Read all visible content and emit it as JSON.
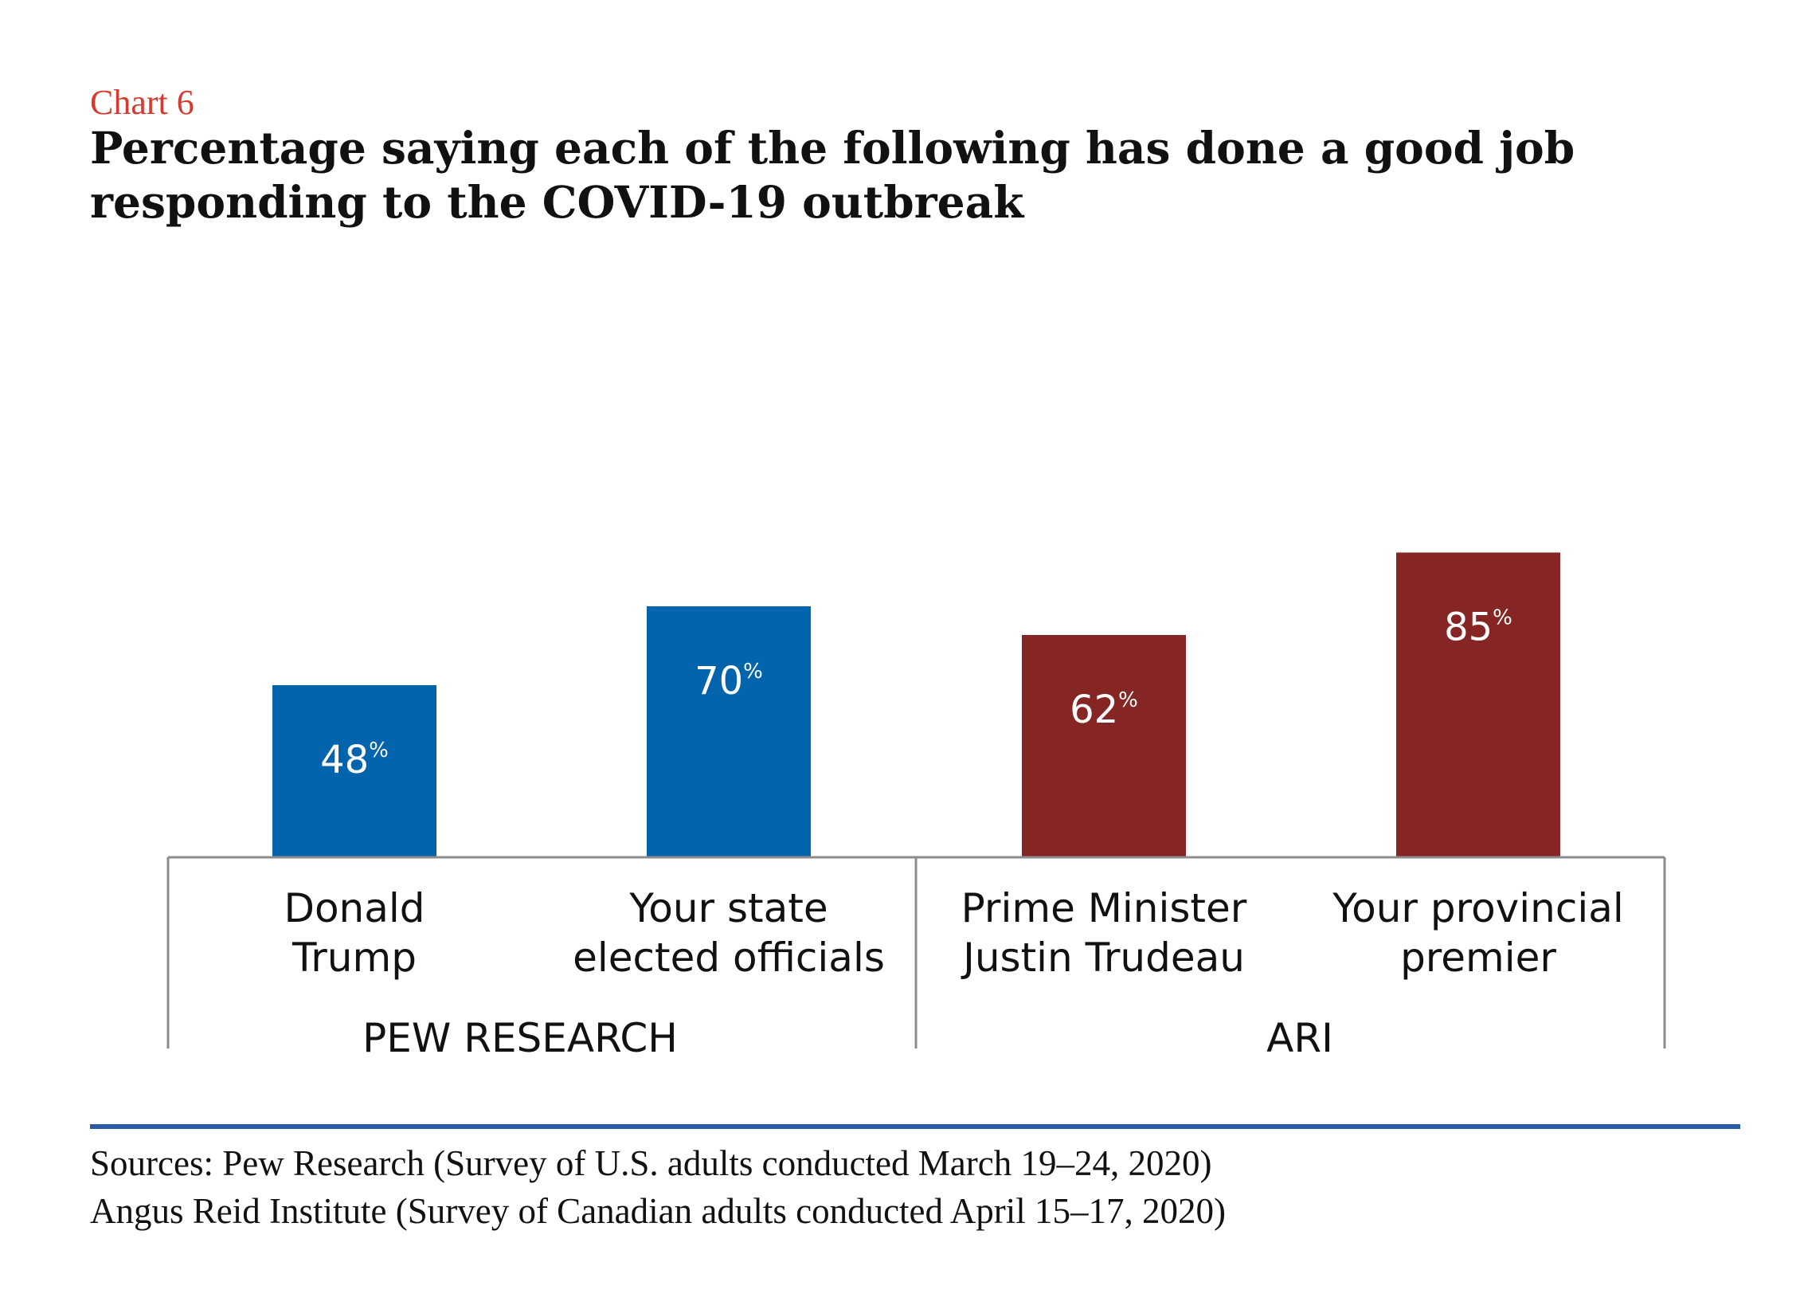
{
  "header": {
    "chart_label": "Chart 6",
    "title": "Percentage saying each of the following has done a good job\nresponding to the COVID-19 outbreak"
  },
  "sources": [
    "Sources: Pew Research (Survey of U.S. adults conducted March 19–24, 2020)",
    "Angus Reid Institute (Survey of Canadian adults conducted April 15–17, 2020)"
  ],
  "colors": {
    "pew_blue": "#0264ad",
    "ari_red": "#852625",
    "chart_label_red": "#d73a2e",
    "rule_blue": "#2a5aa8",
    "axis_gray": "#8c8c8c"
  },
  "chart_data": {
    "type": "bar",
    "title": "Percentage saying each of the following has done a good job responding to the COVID-19 outbreak",
    "categories": [
      [
        "Donald",
        "Trump"
      ],
      [
        "Your state",
        "elected officials"
      ],
      [
        "Prime Minister",
        "Justin Trudeau"
      ],
      [
        "Your provincial",
        "premier"
      ]
    ],
    "values": [
      48,
      70,
      62,
      85
    ],
    "value_suffix": "%",
    "groups": [
      {
        "name": "PEW RESEARCH",
        "members": [
          0,
          1
        ],
        "color": "#0264ad"
      },
      {
        "name": "ARI",
        "members": [
          2,
          3
        ],
        "color": "#852625"
      }
    ],
    "ylim": [
      0,
      85
    ],
    "grid": false,
    "legend": "none"
  }
}
